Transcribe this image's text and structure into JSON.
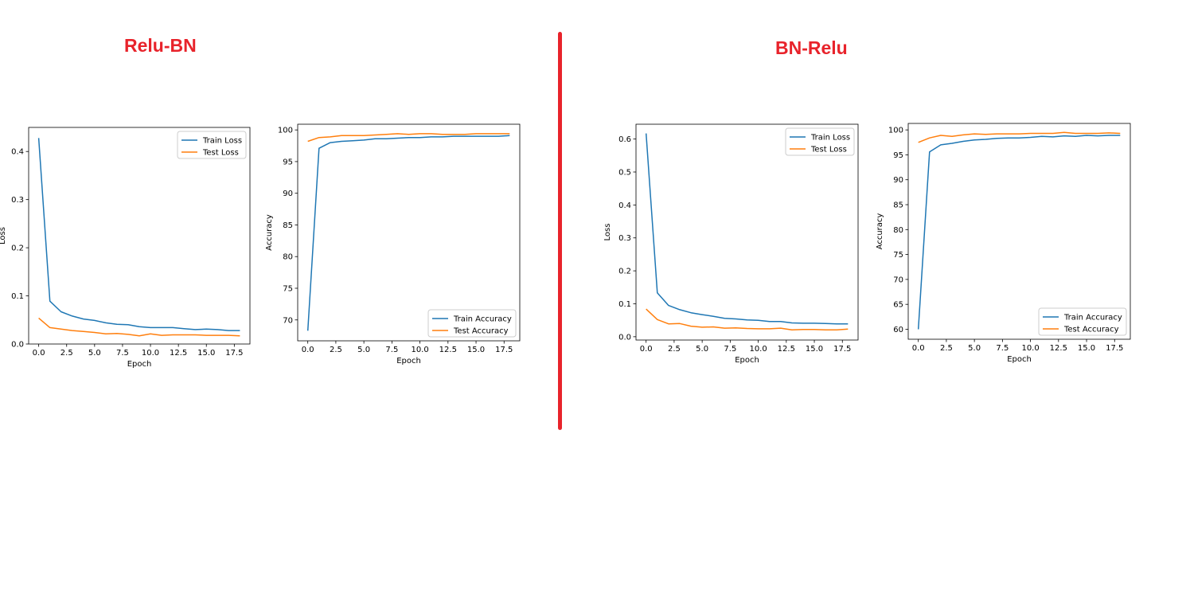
{
  "titles": {
    "left": "Relu-BN",
    "right": "BN-Relu"
  },
  "colors": {
    "title": "#e8232b",
    "train": "#1f77b4",
    "test": "#ff7f0e"
  },
  "chart_data": [
    {
      "type": "line",
      "group": "Relu-BN",
      "xlabel": "Epoch",
      "ylabel": "Loss",
      "xlim": [
        -0.9,
        18.9
      ],
      "ylim": [
        -0.0,
        0.45
      ],
      "xticks": [
        0,
        2.5,
        5,
        7.5,
        10,
        12.5,
        15,
        17.5
      ],
      "xtick_labels": [
        "0.0",
        "2.5",
        "5.0",
        "7.5",
        "10.0",
        "12.5",
        "15.0",
        "17.5"
      ],
      "yticks": [
        0,
        0.1,
        0.2,
        0.3,
        0.4
      ],
      "ytick_labels": [
        "0.0",
        "0.1",
        "0.2",
        "0.3",
        "0.4"
      ],
      "legend": "upper right",
      "x": [
        0,
        1,
        2,
        3,
        4,
        5,
        6,
        7,
        8,
        9,
        10,
        11,
        12,
        13,
        14,
        15,
        16,
        17,
        18
      ],
      "series": [
        {
          "name": "Train Loss",
          "color": "#1f77b4",
          "values": [
            0.428,
            0.089,
            0.067,
            0.058,
            0.052,
            0.049,
            0.044,
            0.041,
            0.04,
            0.036,
            0.034,
            0.034,
            0.034,
            0.032,
            0.03,
            0.031,
            0.03,
            0.028,
            0.028
          ]
        },
        {
          "name": "Test Loss",
          "color": "#ff7f0e",
          "values": [
            0.054,
            0.034,
            0.031,
            0.028,
            0.026,
            0.024,
            0.021,
            0.022,
            0.02,
            0.017,
            0.021,
            0.018,
            0.019,
            0.019,
            0.019,
            0.018,
            0.018,
            0.018,
            0.017
          ]
        }
      ]
    },
    {
      "type": "line",
      "group": "Relu-BN",
      "xlabel": "Epoch",
      "ylabel": "Accuracy",
      "xlim": [
        -0.9,
        18.9
      ],
      "ylim": [
        66.7,
        100.9
      ],
      "xticks": [
        0,
        2.5,
        5,
        7.5,
        10,
        12.5,
        15,
        17.5
      ],
      "xtick_labels": [
        "0.0",
        "2.5",
        "5.0",
        "7.5",
        "10.0",
        "12.5",
        "15.0",
        "17.5"
      ],
      "yticks": [
        70,
        75,
        80,
        85,
        90,
        95,
        100
      ],
      "ytick_labels": [
        "70",
        "75",
        "80",
        "85",
        "90",
        "95",
        "100"
      ],
      "legend": "lower right",
      "x": [
        0,
        1,
        2,
        3,
        4,
        5,
        6,
        7,
        8,
        9,
        10,
        11,
        12,
        13,
        14,
        15,
        16,
        17,
        18
      ],
      "series": [
        {
          "name": "Train Accuracy",
          "color": "#1f77b4",
          "values": [
            68.3,
            97.1,
            98.0,
            98.2,
            98.3,
            98.4,
            98.6,
            98.6,
            98.7,
            98.8,
            98.8,
            98.9,
            98.9,
            99.0,
            99.0,
            99.0,
            99.0,
            99.0,
            99.1
          ]
        },
        {
          "name": "Test Accuracy",
          "color": "#ff7f0e",
          "values": [
            98.2,
            98.8,
            98.9,
            99.1,
            99.1,
            99.1,
            99.2,
            99.3,
            99.4,
            99.3,
            99.4,
            99.4,
            99.3,
            99.3,
            99.3,
            99.4,
            99.4,
            99.4,
            99.4
          ]
        }
      ]
    },
    {
      "type": "line",
      "group": "BN-Relu",
      "xlabel": "Epoch",
      "ylabel": "Loss",
      "xlim": [
        -0.9,
        18.9
      ],
      "ylim": [
        -0.01,
        0.645
      ],
      "xticks": [
        0,
        2.5,
        5,
        7.5,
        10,
        12.5,
        15,
        17.5
      ],
      "xtick_labels": [
        "0.0",
        "2.5",
        "5.0",
        "7.5",
        "10.0",
        "12.5",
        "15.0",
        "17.5"
      ],
      "yticks": [
        0,
        0.1,
        0.2,
        0.3,
        0.4,
        0.5,
        0.6
      ],
      "ytick_labels": [
        "0.0",
        "0.1",
        "0.2",
        "0.3",
        "0.4",
        "0.5",
        "0.6"
      ],
      "legend": "upper right",
      "x": [
        0,
        1,
        2,
        3,
        4,
        5,
        6,
        7,
        8,
        9,
        10,
        11,
        12,
        13,
        14,
        15,
        16,
        17,
        18
      ],
      "series": [
        {
          "name": "Train Loss",
          "color": "#1f77b4",
          "values": [
            0.617,
            0.133,
            0.095,
            0.082,
            0.073,
            0.067,
            0.062,
            0.056,
            0.054,
            0.051,
            0.05,
            0.046,
            0.046,
            0.042,
            0.041,
            0.041,
            0.04,
            0.039,
            0.039
          ]
        },
        {
          "name": "Test Loss",
          "color": "#ff7f0e",
          "values": [
            0.084,
            0.052,
            0.039,
            0.04,
            0.032,
            0.029,
            0.03,
            0.026,
            0.027,
            0.025,
            0.024,
            0.024,
            0.026,
            0.021,
            0.022,
            0.022,
            0.021,
            0.021,
            0.023
          ]
        }
      ]
    },
    {
      "type": "line",
      "group": "BN-Relu",
      "xlabel": "Epoch",
      "ylabel": "Accuracy",
      "xlim": [
        -0.9,
        18.9
      ],
      "ylim": [
        58.0,
        101.3
      ],
      "xticks": [
        0,
        2.5,
        5,
        7.5,
        10,
        12.5,
        15,
        17.5
      ],
      "xtick_labels": [
        "0.0",
        "2.5",
        "5.0",
        "7.5",
        "10.0",
        "12.5",
        "15.0",
        "17.5"
      ],
      "yticks": [
        60,
        65,
        70,
        75,
        80,
        85,
        90,
        95,
        100
      ],
      "ytick_labels": [
        "60",
        "65",
        "70",
        "75",
        "80",
        "85",
        "90",
        "95",
        "100"
      ],
      "legend": "lower right",
      "x": [
        0,
        1,
        2,
        3,
        4,
        5,
        6,
        7,
        8,
        9,
        10,
        11,
        12,
        13,
        14,
        15,
        16,
        17,
        18
      ],
      "series": [
        {
          "name": "Train Accuracy",
          "color": "#1f77b4",
          "values": [
            60.0,
            95.6,
            97.0,
            97.3,
            97.7,
            98.0,
            98.1,
            98.3,
            98.4,
            98.4,
            98.5,
            98.7,
            98.6,
            98.8,
            98.7,
            98.9,
            98.8,
            98.9,
            98.9
          ]
        },
        {
          "name": "Test Accuracy",
          "color": "#ff7f0e",
          "values": [
            97.5,
            98.4,
            98.9,
            98.7,
            99.0,
            99.2,
            99.1,
            99.2,
            99.2,
            99.2,
            99.3,
            99.3,
            99.3,
            99.5,
            99.3,
            99.3,
            99.3,
            99.4,
            99.3
          ]
        }
      ]
    }
  ]
}
